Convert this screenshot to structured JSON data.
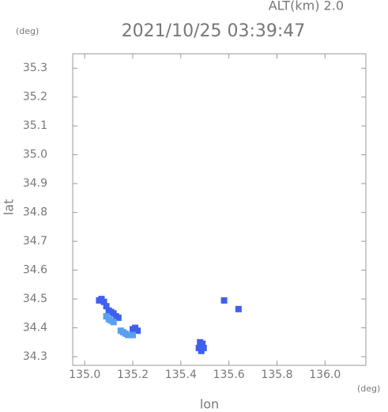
{
  "chart_data": {
    "type": "scatter",
    "title": "2021/10/25 03:39:47",
    "altitude_label": "ALT(km) 2.0",
    "y_unit": "(deg)",
    "x_unit": "(deg)",
    "xlabel": "lon",
    "ylabel": "lat",
    "xlim": [
      134.95,
      136.17
    ],
    "ylim": [
      34.27,
      35.35
    ],
    "xticks": [
      {
        "value": 135,
        "label": "135.0"
      },
      135.2,
      135.4,
      135.6,
      135.8,
      {
        "value": 136,
        "label": "136.0"
      }
    ],
    "yticks": [
      34.3,
      34.4,
      34.5,
      34.6,
      34.7,
      34.8,
      34.9,
      {
        "value": 35,
        "label": "35.0"
      },
      35.1,
      35.2,
      35.3
    ],
    "x": [
      135.06,
      135.07,
      135.08,
      135.09,
      135.1,
      135.11,
      135.12,
      135.13,
      135.14,
      135.09,
      135.1,
      135.11,
      135.12,
      135.15,
      135.16,
      135.17,
      135.18,
      135.2,
      135.21,
      135.22,
      135.2,
      135.475,
      135.485,
      135.495,
      135.48,
      135.49,
      135.64,
      135.58
    ],
    "y": [
      34.495,
      34.5,
      34.49,
      34.475,
      34.46,
      34.455,
      34.45,
      34.44,
      34.435,
      34.44,
      34.43,
      34.425,
      34.42,
      34.39,
      34.385,
      34.38,
      34.375,
      34.395,
      34.4,
      34.39,
      34.375,
      34.33,
      34.32,
      34.33,
      34.35,
      34.345,
      34.465,
      34.495
    ],
    "colors": [
      "#3f5ff0",
      "#3f5ff0",
      "#3f5ff0",
      "#3f5ff0",
      "#3f5ff0",
      "#3f5ff0",
      "#3f5ff0",
      "#3f5ff0",
      "#3f5ff0",
      "#5aa0f0",
      "#5aa0f0",
      "#5aa0f0",
      "#5aa0f0",
      "#5aa0f0",
      "#5aa0f0",
      "#5aa0f0",
      "#5aa0f0",
      "#3f5ff0",
      "#3f5ff0",
      "#3f5ff0",
      "#5aa0f0",
      "#3f5ff0",
      "#3f5ff0",
      "#3f5ff0",
      "#3f5ff0",
      "#3f5ff0",
      "#3f5ff0",
      "#3f5ff0"
    ]
  }
}
